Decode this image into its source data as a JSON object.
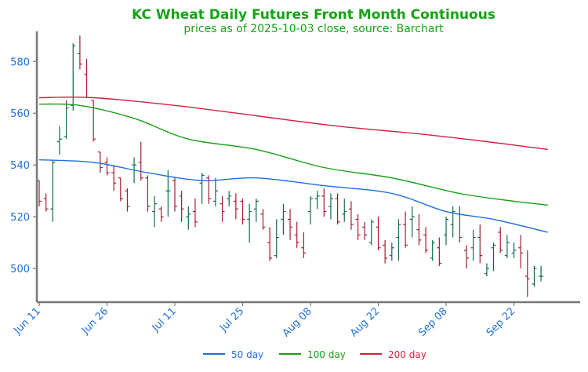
{
  "colors": {
    "title": "#15a315",
    "tick_text": "#1f6fd6",
    "axis": "#777777",
    "up_bar": "#0f6b4a",
    "down_bar": "#a51b2e"
  },
  "chart_data": {
    "type": "ohlc",
    "title": "KC Wheat Daily Futures Front Month Continuous",
    "subtitle": "prices as of 2025-10-03 close, source: Barchart",
    "xlabel": "",
    "ylabel": "",
    "ylim": [
      487,
      591
    ],
    "yticks": [
      500,
      520,
      540,
      560,
      580
    ],
    "grid": false,
    "legend_position": "bottom",
    "xticks": [
      {
        "label": "Jun 11",
        "index": 0
      },
      {
        "label": "Jun 26",
        "index": 10
      },
      {
        "label": "Jul 11",
        "index": 20
      },
      {
        "label": "Jul 25",
        "index": 30
      },
      {
        "label": "Aug 08",
        "index": 40
      },
      {
        "label": "Aug 22",
        "index": 50
      },
      {
        "label": "Sep 08",
        "index": 60
      },
      {
        "label": "Sep 22",
        "index": 70
      }
    ],
    "ohlc": [
      [
        534,
        534,
        524,
        526
      ],
      [
        527,
        529,
        522,
        523
      ],
      [
        523,
        542,
        518,
        541
      ],
      [
        549,
        555,
        544,
        550
      ],
      [
        551,
        565,
        550,
        562
      ],
      [
        563,
        587,
        561,
        586
      ],
      [
        583,
        590,
        577,
        579
      ],
      [
        575,
        581,
        566,
        566
      ],
      [
        565,
        565,
        549,
        550
      ],
      [
        545,
        545,
        537,
        539
      ],
      [
        541,
        543,
        536,
        537
      ],
      [
        537,
        540,
        530,
        533
      ],
      [
        535,
        535,
        526,
        527
      ],
      [
        530,
        531,
        522,
        524
      ],
      [
        540,
        543,
        533,
        540
      ],
      [
        541,
        549,
        534,
        535
      ],
      [
        535,
        536,
        522,
        524
      ],
      [
        522,
        528,
        516,
        525
      ],
      [
        523,
        524,
        518,
        520
      ],
      [
        530,
        538,
        520,
        530
      ],
      [
        534,
        535,
        522,
        524
      ],
      [
        528,
        530,
        518,
        523
      ],
      [
        520,
        524,
        515,
        521
      ],
      [
        522,
        527,
        516,
        518
      ],
      [
        533,
        537,
        525,
        536
      ],
      [
        535,
        536,
        525,
        527
      ],
      [
        526,
        535,
        524,
        530
      ],
      [
        525,
        528,
        518,
        522
      ],
      [
        527,
        530,
        524,
        528
      ],
      [
        526,
        529,
        519,
        523
      ],
      [
        526,
        527,
        517,
        519
      ],
      [
        519,
        525,
        510,
        522
      ],
      [
        523,
        527,
        518,
        526
      ],
      [
        521,
        523,
        515,
        516
      ],
      [
        510,
        516,
        503,
        504
      ],
      [
        505,
        519,
        504,
        512
      ],
      [
        519,
        525,
        513,
        522
      ],
      [
        519,
        523,
        511,
        516
      ],
      [
        513,
        518,
        508,
        510
      ],
      [
        508,
        514,
        504,
        506
      ],
      [
        522,
        528,
        517,
        527
      ],
      [
        527,
        530,
        523,
        528
      ],
      [
        528,
        531,
        520,
        522
      ],
      [
        524,
        529,
        519,
        527
      ],
      [
        527,
        529,
        517,
        518
      ],
      [
        521,
        527,
        518,
        522
      ],
      [
        523,
        526,
        515,
        517
      ],
      [
        519,
        521,
        511,
        513
      ],
      [
        516,
        518,
        511,
        513
      ],
      [
        510,
        519,
        509,
        518
      ],
      [
        516,
        520,
        507,
        508
      ],
      [
        509,
        511,
        502,
        504
      ],
      [
        505,
        510,
        503,
        508
      ],
      [
        512,
        519,
        503,
        517
      ],
      [
        517,
        522,
        508,
        509
      ],
      [
        519,
        524,
        512,
        520
      ],
      [
        515,
        521,
        509,
        511
      ],
      [
        513,
        516,
        506,
        507
      ],
      [
        504,
        511,
        503,
        510
      ],
      [
        508,
        512,
        501,
        502
      ],
      [
        513,
        520,
        509,
        519
      ],
      [
        517,
        524,
        512,
        522
      ],
      [
        521,
        524,
        510,
        512
      ],
      [
        507,
        509,
        500,
        504
      ],
      [
        508,
        515,
        503,
        512
      ],
      [
        512,
        517,
        502,
        505
      ],
      [
        498,
        502,
        497,
        500
      ],
      [
        508,
        510,
        499,
        509
      ],
      [
        514,
        516,
        506,
        507
      ],
      [
        505,
        513,
        504,
        510
      ],
      [
        506,
        510,
        504,
        507
      ],
      [
        508,
        513,
        500,
        506
      ],
      [
        497,
        507,
        489,
        496
      ],
      [
        494,
        501,
        493,
        500
      ],
      [
        497,
        501,
        495,
        497
      ]
    ],
    "series": [
      {
        "name": "50 day",
        "color": "#1e6fdc",
        "points": [
          [
            0,
            542
          ],
          [
            8,
            541
          ],
          [
            16,
            537
          ],
          [
            24,
            534
          ],
          [
            32,
            535
          ],
          [
            42,
            532
          ],
          [
            52,
            529
          ],
          [
            60,
            522
          ],
          [
            67,
            519
          ],
          [
            75,
            514
          ]
        ]
      },
      {
        "name": "100 day",
        "color": "#14a014",
        "points": [
          [
            0,
            563.5
          ],
          [
            6,
            563
          ],
          [
            14,
            558
          ],
          [
            22,
            550
          ],
          [
            32,
            546
          ],
          [
            42,
            539
          ],
          [
            52,
            535
          ],
          [
            62,
            529
          ],
          [
            70,
            526
          ],
          [
            75,
            524.5
          ]
        ]
      },
      {
        "name": "200 day",
        "color": "#d0223f",
        "points": [
          [
            0,
            566
          ],
          [
            8,
            566
          ],
          [
            20,
            563
          ],
          [
            32,
            559
          ],
          [
            44,
            555
          ],
          [
            56,
            552
          ],
          [
            66,
            549
          ],
          [
            75,
            546
          ]
        ]
      }
    ]
  }
}
